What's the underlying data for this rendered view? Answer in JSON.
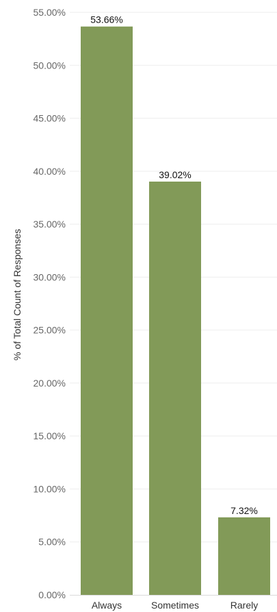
{
  "chart_data": {
    "type": "bar",
    "categories": [
      "Always",
      "Sometimes",
      "Rarely"
    ],
    "values": [
      53.66,
      39.02,
      7.32
    ],
    "value_labels": [
      "53.66%",
      "39.02%",
      "7.32%"
    ],
    "ylabel": "% of Total Count of Responses",
    "ylim": [
      0,
      55
    ],
    "y_ticks": [
      0,
      5,
      10,
      15,
      20,
      25,
      30,
      35,
      40,
      45,
      50,
      55
    ],
    "y_tick_labels": [
      "0.00%",
      "5.00%",
      "10.00%",
      "15.00%",
      "20.00%",
      "25.00%",
      "30.00%",
      "35.00%",
      "40.00%",
      "45.00%",
      "50.00%",
      "55.00%"
    ],
    "grid": true,
    "bar_color": "#829a58"
  }
}
